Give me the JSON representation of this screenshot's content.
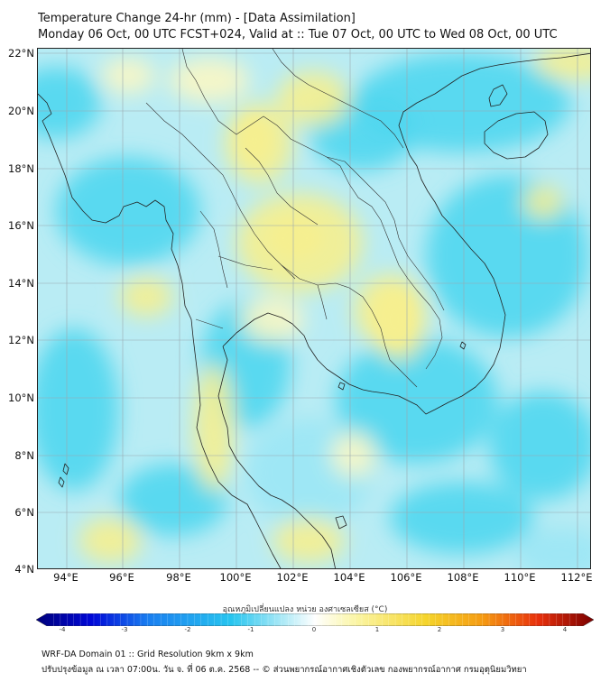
{
  "header": {
    "title_line1": "Temperature Change 24-hr (mm) - [Data Assimilation]",
    "title_line2": "Monday 06 Oct, 00 UTC FCST+024, Valid at :: Tue 07 Oct, 00 UTC to Wed 08 Oct, 00 UTC"
  },
  "map": {
    "region": "Thailand / Indochina",
    "lat_labels": [
      "22°N",
      "20°N",
      "18°N",
      "16°N",
      "14°N",
      "12°N",
      "10°N",
      "8°N",
      "6°N",
      "4°N"
    ],
    "lon_labels": [
      "94°E",
      "96°E",
      "98°E",
      "100°E",
      "102°E",
      "104°E",
      "106°E",
      "108°E",
      "110°E",
      "112°E"
    ],
    "colors": {
      "background_field": "#b9ecf4",
      "cyan": "#4fd7f0",
      "light_cyan": "#9be7f5",
      "yellow": "#f6ef8f",
      "light_yellow": "#fbf7c4",
      "pale": "#e6f7fb",
      "gridline": "#9aa8b0",
      "coastline": "#222222"
    }
  },
  "colorbar": {
    "title": "อุณหภูมิเปลี่ยนแปลง หน่วย องศาเซลเซียส (°C)",
    "ticks": [
      "-4",
      "-3",
      "-2",
      "-1",
      "0",
      "1",
      "2",
      "3",
      "4"
    ],
    "min": -4,
    "max": 4,
    "stops": [
      "#00007a",
      "#0008d8",
      "#1a7ef0",
      "#27c5ef",
      "#b7ecf7",
      "#ffffff",
      "#fbf6a8",
      "#f5d42b",
      "#f59b12",
      "#e8300c",
      "#7a0000"
    ]
  },
  "footer": {
    "line1": "WRF-DA Domain 01 :: Grid Resolution 9km x 9km",
    "line2": "ปรับปรุงข้อมูล ณ เวลา 07:00น. วัน จ. ที่ 06 ต.ค. 2568 -- © ส่วนพยากรณ์อากาศเชิงตัวเลข กองพยากรณ์อากาศ กรมอุตุนิยมวิทยา"
  }
}
